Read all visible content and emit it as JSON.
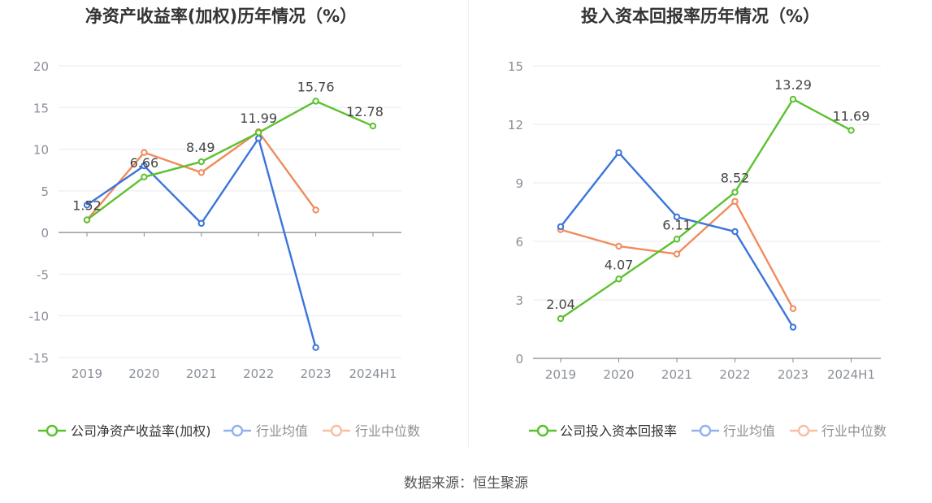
{
  "source_label": "数据来源：恒生聚源",
  "colors": {
    "company": "#5cc12f",
    "industry_avg": "#3b74dd",
    "industry_median": "#f08b5c",
    "grid": "#e6e9f0",
    "axis_text": "#8a8f99"
  },
  "chart_data": [
    {
      "type": "line",
      "title": "净资产收益率(加权)历年情况（%）",
      "categories": [
        "2019",
        "2020",
        "2021",
        "2022",
        "2023",
        "2024H1"
      ],
      "ylim": [
        -15,
        20
      ],
      "yticks": [
        20,
        15,
        10,
        5,
        0,
        -5,
        -10,
        -15
      ],
      "ytick_labels": [
        "20",
        "15",
        "10",
        "5",
        "0",
        "-5",
        "-10",
        "-15"
      ],
      "grid": true,
      "legend_position": "bottom",
      "series": [
        {
          "name": "公司净资产收益率(加权)",
          "key": "company",
          "values": [
            1.52,
            6.66,
            8.49,
            11.99,
            15.76,
            12.78
          ],
          "labels": [
            "1.52",
            "6.66",
            "8.49",
            "11.99",
            "15.76",
            "12.78"
          ]
        },
        {
          "name": "行业均值",
          "key": "industry_avg",
          "values": [
            3.3,
            8.0,
            1.1,
            11.3,
            -13.8,
            null
          ]
        },
        {
          "name": "行业中位数",
          "key": "industry_median",
          "values": [
            1.5,
            9.6,
            7.2,
            12.1,
            2.7,
            null
          ]
        }
      ]
    },
    {
      "type": "line",
      "title": "投入资本回报率历年情况（%）",
      "categories": [
        "2019",
        "2020",
        "2021",
        "2022",
        "2023",
        "2024H1"
      ],
      "ylim": [
        0,
        15
      ],
      "yticks": [
        15,
        12,
        9,
        6,
        3,
        0
      ],
      "ytick_labels": [
        "15",
        "12",
        "9",
        "6",
        "3",
        "0"
      ],
      "grid": true,
      "legend_position": "bottom",
      "series": [
        {
          "name": "公司投入资本回报率",
          "key": "company",
          "values": [
            2.04,
            4.07,
            6.11,
            8.52,
            13.29,
            11.69
          ],
          "labels": [
            "2.04",
            "4.07",
            "6.11",
            "8.52",
            "13.29",
            "11.69"
          ]
        },
        {
          "name": "行业均值",
          "key": "industry_avg",
          "values": [
            6.75,
            10.55,
            7.25,
            6.5,
            1.6,
            null
          ]
        },
        {
          "name": "行业中位数",
          "key": "industry_median",
          "values": [
            6.6,
            5.75,
            5.35,
            8.05,
            2.55,
            null
          ]
        }
      ]
    }
  ]
}
